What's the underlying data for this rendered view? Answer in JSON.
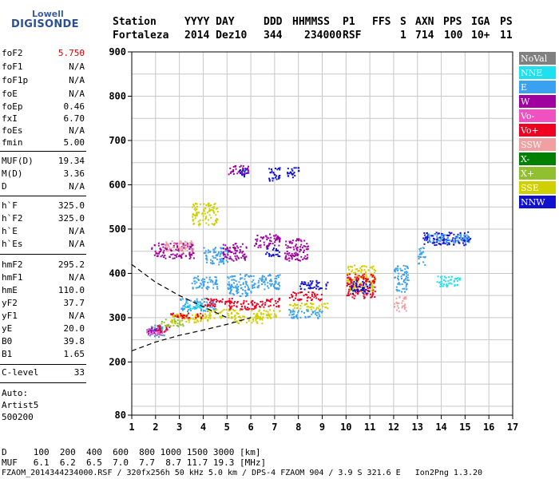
{
  "logo": {
    "line1": "Lowell",
    "line2": "DIGISONDE"
  },
  "header": {
    "labels": [
      "Station",
      "YYYY DAY",
      "DDD",
      "HHMMSS",
      "P1",
      "FFS",
      "S",
      "AXN",
      "PPS",
      "IGA",
      "PS"
    ],
    "values": [
      "Fortaleza",
      "2014 Dez10",
      "344",
      "234000",
      "RSF",
      "1",
      "714",
      "100",
      "10+",
      "11"
    ]
  },
  "params": [
    {
      "label": "foF2",
      "value": "5.750",
      "red": true
    },
    {
      "label": "foF1",
      "value": "N/A"
    },
    {
      "label": "foF1p",
      "value": "N/A"
    },
    {
      "label": "foE",
      "value": "N/A"
    },
    {
      "label": "foEp",
      "value": "0.46"
    },
    {
      "label": "fxI",
      "value": "6.70"
    },
    {
      "label": "foEs",
      "value": "N/A"
    },
    {
      "label": "fmin",
      "value": "5.00"
    },
    {
      "label": "MUF(D)",
      "value": "19.34"
    },
    {
      "label": "M(D)",
      "value": "3.36"
    },
    {
      "label": "D",
      "value": "N/A"
    },
    {
      "label": "h`F",
      "value": "325.0"
    },
    {
      "label": "h`F2",
      "value": "325.0"
    },
    {
      "label": "h`E",
      "value": "N/A"
    },
    {
      "label": "h`Es",
      "value": "N/A"
    },
    {
      "label": "hmF2",
      "value": "295.2"
    },
    {
      "label": "hmF1",
      "value": "N/A"
    },
    {
      "label": "hmE",
      "value": "110.0"
    },
    {
      "label": "yF2",
      "value": "37.7"
    },
    {
      "label": "yF1",
      "value": "N/A"
    },
    {
      "label": "yE",
      "value": "20.0"
    },
    {
      "label": "B0",
      "value": "39.8"
    },
    {
      "label": "B1",
      "value": "1.65"
    },
    {
      "label": "C-level",
      "value": "33"
    }
  ],
  "autoscale": {
    "line1": "Auto:",
    "line2": "Artist5",
    "line3": "500200"
  },
  "legend": [
    {
      "label": "NoVal",
      "color": "#808080"
    },
    {
      "label": "NNE",
      "color": "#1ee0f0"
    },
    {
      "label": "E",
      "color": "#3aa0f0"
    },
    {
      "label": "W",
      "color": "#a000a0"
    },
    {
      "label": "Vo-",
      "color": "#f050c0"
    },
    {
      "label": "Vo+",
      "color": "#f00020"
    },
    {
      "label": "SSW",
      "color": "#f0a0a0"
    },
    {
      "label": "X-",
      "color": "#008000"
    },
    {
      "label": "X+",
      "color": "#90c030"
    },
    {
      "label": "SSE",
      "color": "#d0d000"
    },
    {
      "label": "NNW",
      "color": "#1010d0"
    }
  ],
  "footer": {
    "d_row": "D     100  200  400  600  800 1000 1500 3000 [km]",
    "muf_row": "MUF   6.1  6.2  6.5  7.0  7.7  8.7 11.7 19.3 [MHz]",
    "info_row": "FZAOM_2014344234000.RSF / 320fx256h 50 kHz 5.0 km / DPS-4 FZAOM 904 / 3.9 S 321.6 E   Ion2Png 1.3.20"
  },
  "chart_data": {
    "type": "scatter",
    "xlim": [
      1,
      17
    ],
    "ylim": [
      80,
      900
    ],
    "xticks": [
      1,
      2,
      3,
      4,
      5,
      6,
      7,
      8,
      9,
      10,
      11,
      12,
      13,
      14,
      15,
      16,
      17
    ],
    "yticks": [
      80,
      200,
      300,
      400,
      500,
      600,
      700,
      800,
      900
    ],
    "xlabel": "",
    "ylabel": "",
    "grid": true,
    "clusters": [
      {
        "color": "E",
        "x": [
          1.6,
          2.4
        ],
        "y": [
          258,
          285
        ]
      },
      {
        "color": "Vo-",
        "x": [
          1.6,
          2.4
        ],
        "y": [
          262,
          280
        ]
      },
      {
        "color": "W",
        "x": [
          1.6,
          2.2
        ],
        "y": [
          265,
          278
        ]
      },
      {
        "color": "Vo+",
        "x": [
          2.0,
          2.6
        ],
        "y": [
          270,
          285
        ]
      },
      {
        "color": "X+",
        "x": [
          2.2,
          3.2
        ],
        "y": [
          282,
          300
        ]
      },
      {
        "color": "SSE",
        "x": [
          2.6,
          4.2
        ],
        "y": [
          290,
          310
        ]
      },
      {
        "color": "Vo+",
        "x": [
          2.6,
          4.0
        ],
        "y": [
          300,
          312
        ]
      },
      {
        "color": "W",
        "x": [
          1.8,
          3.6
        ],
        "y": [
          435,
          470
        ]
      },
      {
        "color": "SSW",
        "x": [
          2.4,
          3.6
        ],
        "y": [
          450,
          475
        ]
      },
      {
        "color": "E",
        "x": [
          3.0,
          4.5
        ],
        "y": [
          315,
          345
        ]
      },
      {
        "color": "NNE",
        "x": [
          3.2,
          4.2
        ],
        "y": [
          320,
          335
        ]
      },
      {
        "color": "E",
        "x": [
          3.5,
          4.6
        ],
        "y": [
          365,
          395
        ]
      },
      {
        "color": "SSE",
        "x": [
          3.5,
          4.6
        ],
        "y": [
          510,
          560
        ]
      },
      {
        "color": "E",
        "x": [
          4.0,
          5.0
        ],
        "y": [
          420,
          460
        ]
      },
      {
        "color": "Vo+",
        "x": [
          4.0,
          5.2
        ],
        "y": [
          325,
          345
        ]
      },
      {
        "color": "SSE",
        "x": [
          4.0,
          5.6
        ],
        "y": [
          300,
          320
        ]
      },
      {
        "color": "W",
        "x": [
          5.0,
          5.9
        ],
        "y": [
          625,
          645
        ]
      },
      {
        "color": "NNW",
        "x": [
          5.5,
          5.9
        ],
        "y": [
          618,
          638
        ]
      },
      {
        "color": "W",
        "x": [
          4.8,
          5.8
        ],
        "y": [
          430,
          470
        ]
      },
      {
        "color": "E",
        "x": [
          5.0,
          6.0
        ],
        "y": [
          350,
          400
        ]
      },
      {
        "color": "Vo+",
        "x": [
          5.0,
          6.2
        ],
        "y": [
          320,
          340
        ]
      },
      {
        "color": "SSE",
        "x": [
          5.2,
          6.5
        ],
        "y": [
          288,
          305
        ]
      },
      {
        "color": "NNW",
        "x": [
          6.7,
          7.2
        ],
        "y": [
          610,
          640
        ]
      },
      {
        "color": "NNW",
        "x": [
          6.6,
          7.2
        ],
        "y": [
          440,
          460
        ]
      },
      {
        "color": "W",
        "x": [
          6.1,
          7.2
        ],
        "y": [
          460,
          490
        ]
      },
      {
        "color": "E",
        "x": [
          6.0,
          7.2
        ],
        "y": [
          365,
          400
        ]
      },
      {
        "color": "Vo+",
        "x": [
          6.0,
          7.2
        ],
        "y": [
          325,
          345
        ]
      },
      {
        "color": "SSE",
        "x": [
          6.0,
          7.2
        ],
        "y": [
          300,
          320
        ]
      },
      {
        "color": "NNW",
        "x": [
          7.5,
          8.0
        ],
        "y": [
          615,
          640
        ]
      },
      {
        "color": "W",
        "x": [
          7.4,
          8.4
        ],
        "y": [
          430,
          480
        ]
      },
      {
        "color": "E",
        "x": [
          7.5,
          9.0
        ],
        "y": [
          300,
          320
        ]
      },
      {
        "color": "NNW",
        "x": [
          8.0,
          9.2
        ],
        "y": [
          365,
          385
        ]
      },
      {
        "color": "Vo+",
        "x": [
          7.6,
          9.0
        ],
        "y": [
          340,
          360
        ]
      },
      {
        "color": "SSE",
        "x": [
          7.6,
          9.2
        ],
        "y": [
          320,
          335
        ]
      },
      {
        "color": "SSE",
        "x": [
          10.0,
          11.2
        ],
        "y": [
          360,
          420
        ]
      },
      {
        "color": "Vo+",
        "x": [
          10.0,
          11.2
        ],
        "y": [
          345,
          400
        ]
      },
      {
        "color": "NNW",
        "x": [
          10.2,
          11.0
        ],
        "y": [
          355,
          385
        ]
      },
      {
        "color": "E",
        "x": [
          12.0,
          12.6
        ],
        "y": [
          360,
          420
        ]
      },
      {
        "color": "SSW",
        "x": [
          12.0,
          12.5
        ],
        "y": [
          315,
          350
        ]
      },
      {
        "color": "E",
        "x": [
          13.0,
          13.3
        ],
        "y": [
          420,
          460
        ]
      },
      {
        "color": "NNE",
        "x": [
          13.8,
          14.8
        ],
        "y": [
          370,
          395
        ]
      },
      {
        "color": "NNW",
        "x": [
          13.2,
          15.2
        ],
        "y": [
          465,
          495
        ]
      },
      {
        "color": "E",
        "x": [
          13.4,
          15.2
        ],
        "y": [
          470,
          490
        ]
      }
    ],
    "leading_edge": {
      "upper": [
        [
          1.0,
          420
        ],
        [
          2.0,
          380
        ],
        [
          3.0,
          350
        ],
        [
          4.0,
          325
        ],
        [
          5.0,
          300
        ]
      ],
      "lower": [
        [
          1.0,
          225
        ],
        [
          2.0,
          245
        ],
        [
          3.0,
          260
        ],
        [
          4.0,
          272
        ],
        [
          5.0,
          285
        ],
        [
          6.0,
          300
        ]
      ]
    }
  }
}
